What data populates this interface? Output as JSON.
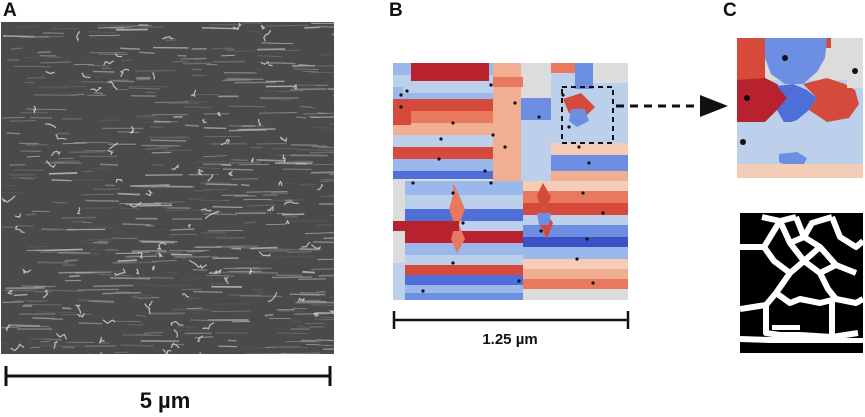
{
  "figure": {
    "panels": [
      {
        "id": "A",
        "label": "A",
        "scale_bar": "5 µm"
      },
      {
        "id": "B",
        "label": "B",
        "scale_bar": "1.25 µm"
      },
      {
        "id": "C",
        "label": "C"
      }
    ],
    "colors": {
      "dark_red": "#b8222e",
      "red": "#d64a3b",
      "orange": "#e8795e",
      "salmon": "#f2ae92",
      "peach": "#f5cdb7",
      "light_gray": "#dcdcdc",
      "pale_blue": "#bcd0ec",
      "light_blue": "#9bb8ec",
      "mid_blue": "#6c8fe4",
      "blue": "#4f6fd8",
      "dark_blue": "#3a52c6",
      "sem_background": "#4a4a4a"
    }
  }
}
